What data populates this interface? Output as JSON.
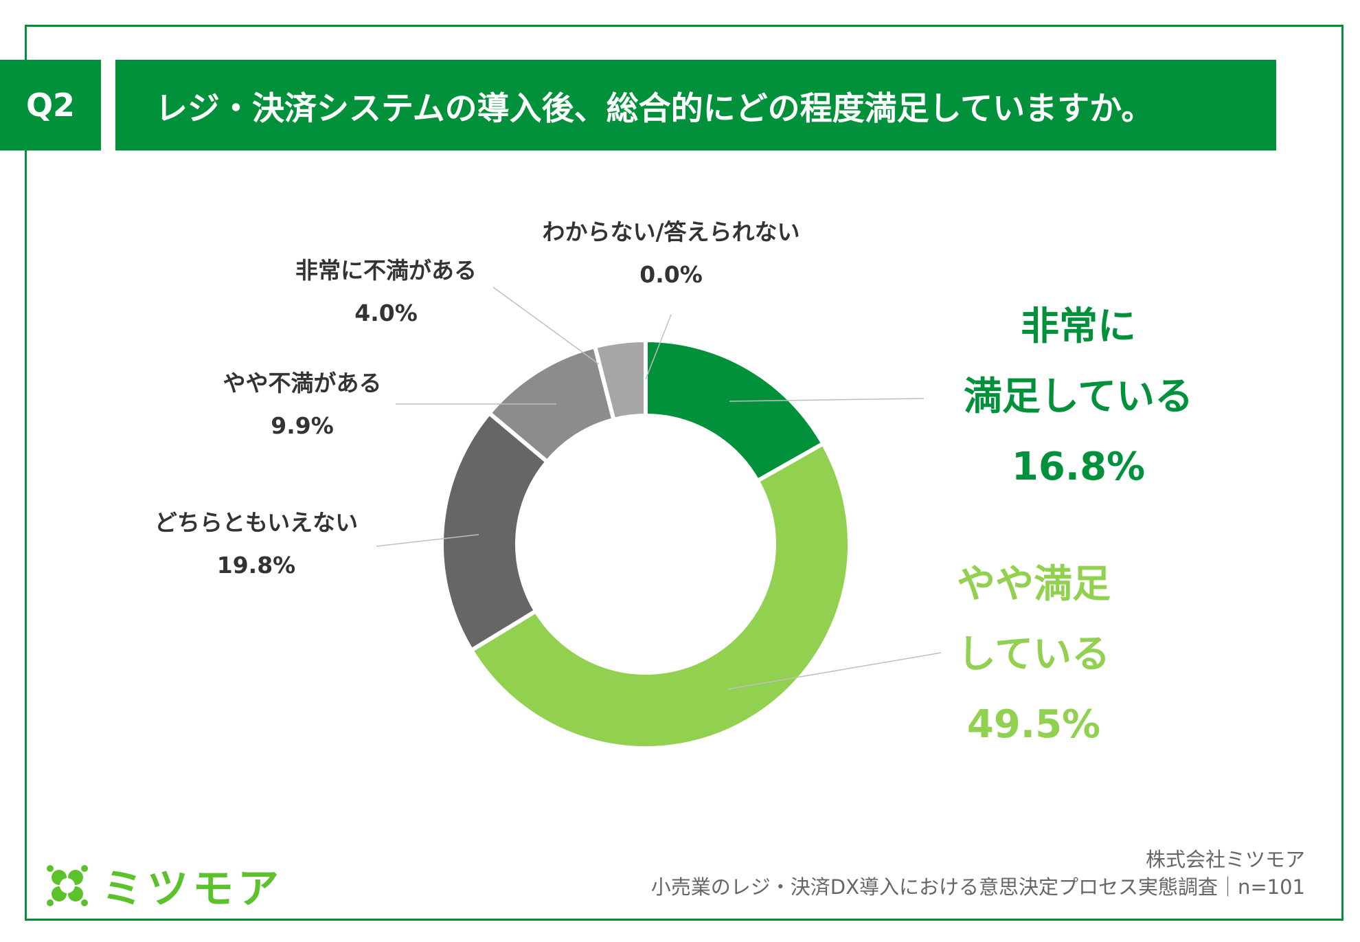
{
  "header": {
    "question_no": "Q2",
    "title": "レジ・決済システムの導入後、総合的にどの程度満足していますか。"
  },
  "chart_data": {
    "type": "pie",
    "subtype": "donut",
    "slices": [
      {
        "label": "非常に満足している",
        "value": 16.8,
        "pct_text": "16.8%",
        "color": "#00913a"
      },
      {
        "label": "やや満足している",
        "value": 49.5,
        "pct_text": "49.5%",
        "color": "#92d050"
      },
      {
        "label": "どちらともいえない",
        "value": 19.8,
        "pct_text": "19.8%",
        "color": "#666666"
      },
      {
        "label": "やや不満がある",
        "value": 9.9,
        "pct_text": "9.9%",
        "color": "#8c8c8c"
      },
      {
        "label": "非常に不満がある",
        "value": 4.0,
        "pct_text": "4.0%",
        "color": "#a6a6a6"
      },
      {
        "label": "わからない/答えられない",
        "value": 0.0,
        "pct_text": "0.0%",
        "color": "#bfbfbf"
      }
    ]
  },
  "labels": {
    "very_satisfied_line1": "非常に",
    "very_satisfied_line2": "満足している",
    "somewhat_satisfied_line1": "やや満足",
    "somewhat_satisfied_line2": "している"
  },
  "footer": {
    "company": "株式会社ミツモア",
    "survey": "小売業のレジ・決済DX導入における意思決定プロセス実態調査｜n=101"
  },
  "logo": {
    "text": "ミツモア"
  },
  "colors": {
    "brand_green": "#00913a",
    "light_green": "#92d050",
    "logo_green": "#5cc22b"
  }
}
